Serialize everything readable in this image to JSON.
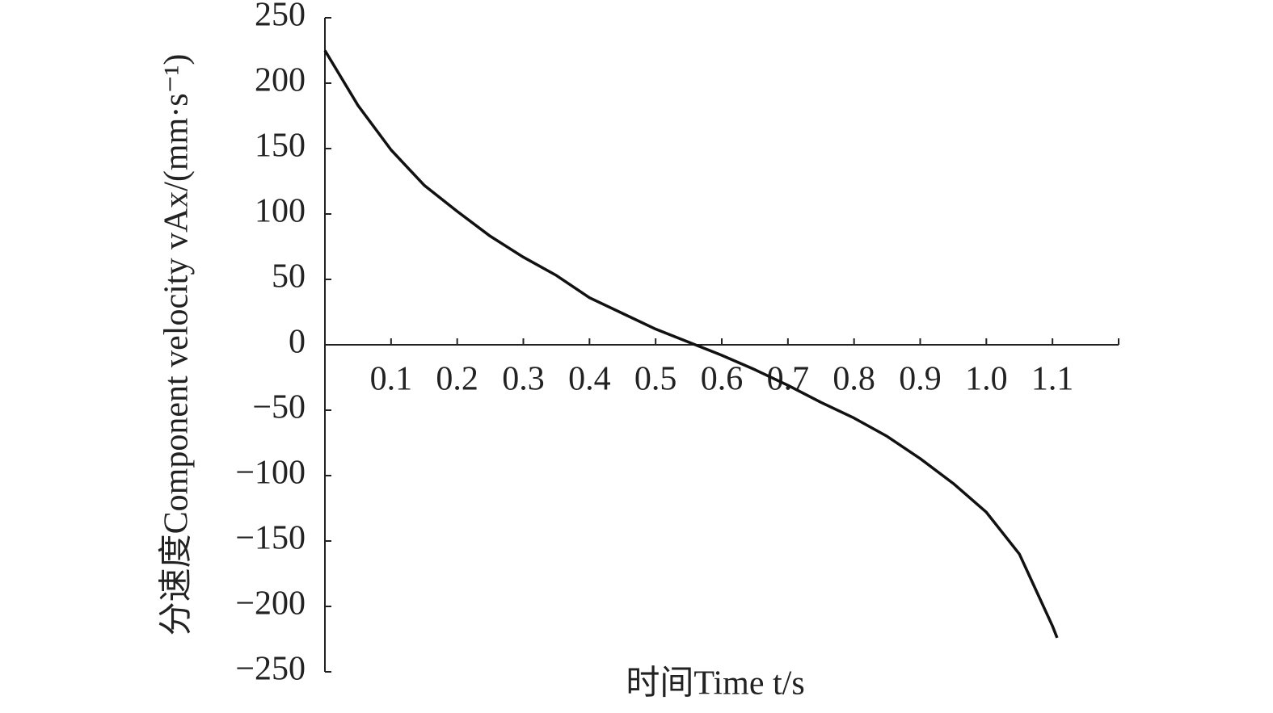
{
  "chart_data": {
    "type": "line",
    "x_label": "时间Time t/s",
    "y_label": "分速度Component velocity vAx/(mm·s⁻¹)",
    "series": [
      {
        "color": "#111111",
        "x": [
          0,
          0.05,
          0.1,
          0.15,
          0.2,
          0.25,
          0.3,
          0.35,
          0.4,
          0.45,
          0.5,
          0.55,
          0.56,
          0.6,
          0.65,
          0.7,
          0.75,
          0.8,
          0.85,
          0.9,
          0.95,
          1.0,
          1.05,
          1.1,
          1.107
        ],
        "values": [
          225,
          183,
          149,
          122,
          102,
          83,
          67,
          53,
          36,
          24,
          12,
          2,
          0,
          -8,
          -19,
          -31,
          -44,
          -56,
          -70,
          -87,
          -106,
          -128,
          -160,
          -215,
          -224
        ]
      }
    ],
    "xlim": [
      0,
      1.2
    ],
    "xticks": [
      0.1,
      0.2,
      0.3,
      0.4,
      0.5,
      0.6,
      0.7,
      0.8,
      0.9,
      {
        "value": 1,
        "label": "1.0"
      },
      1.1
    ],
    "ylim": [
      -250,
      250
    ],
    "yticks": [
      250,
      200,
      150,
      100,
      50,
      0,
      {
        "value": -50,
        "label": "−50"
      },
      {
        "value": -100,
        "label": "−100"
      },
      {
        "value": -150,
        "label": "−150"
      },
      {
        "value": -200,
        "label": "−200"
      },
      {
        "value": -250,
        "label": "−250"
      }
    ],
    "grid": false
  }
}
